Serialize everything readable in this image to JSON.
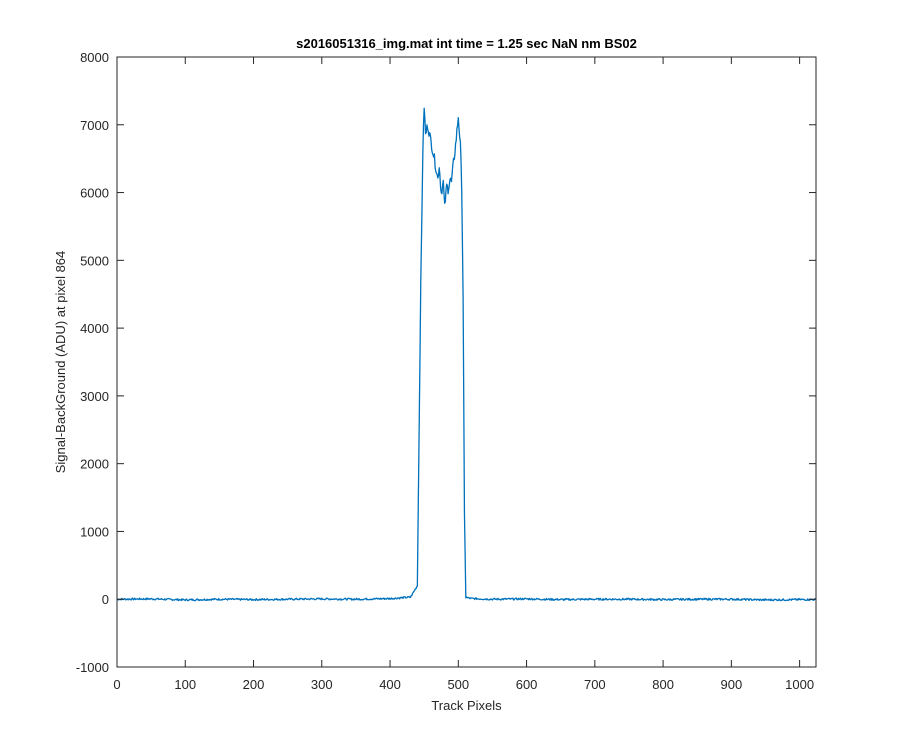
{
  "chart_data": {
    "type": "line",
    "title": "s2016051316_img.mat int time = 1.25 sec  NaN nm BS02",
    "xlabel": "Track Pixels",
    "ylabel": "Signal-BackGround (ADU) at pixel 864",
    "xlim": [
      0,
      1024
    ],
    "ylim": [
      -1000,
      8000
    ],
    "xticks": [
      0,
      100,
      200,
      300,
      400,
      500,
      600,
      700,
      800,
      900,
      1000
    ],
    "yticks": [
      -1000,
      0,
      1000,
      2000,
      3000,
      4000,
      5000,
      6000,
      7000,
      8000
    ],
    "grid": false,
    "legend": "none",
    "series": [
      {
        "color": "#0072BD",
        "x": [
          0,
          50,
          100,
          150,
          200,
          250,
          300,
          350,
          400,
          430,
          440,
          445,
          448,
          450,
          452,
          455,
          460,
          465,
          470,
          472,
          475,
          478,
          480,
          483,
          485,
          488,
          490,
          493,
          495,
          497,
          500,
          503,
          505,
          507,
          509,
          511,
          513,
          520,
          550,
          600,
          650,
          700,
          750,
          800,
          850,
          900,
          950,
          1000,
          1024
        ],
        "y": [
          0,
          5,
          -10,
          0,
          -5,
          0,
          5,
          0,
          10,
          30,
          200,
          4600,
          6600,
          7280,
          6850,
          7000,
          6750,
          6500,
          6200,
          6400,
          6000,
          6150,
          5780,
          6100,
          6050,
          6200,
          6150,
          6450,
          6600,
          6800,
          7120,
          6700,
          6100,
          4500,
          1200,
          60,
          20,
          10,
          0,
          5,
          -5,
          0,
          0,
          -5,
          0,
          0,
          -10,
          -5,
          -5
        ]
      }
    ]
  }
}
